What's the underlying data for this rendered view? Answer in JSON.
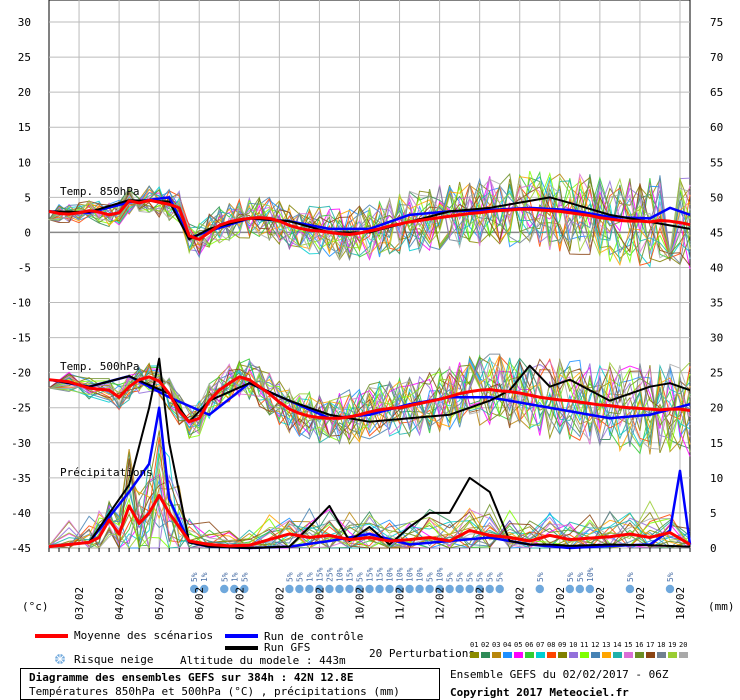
{
  "chart_data": {
    "type": "line",
    "title": "Diagramme des ensembles GEFS sur 384h : 42N 12.8E",
    "subtitle": "Températures 850hPa et 500hPa (°C) , précipitations (mm)",
    "source": "Ensemble GEFS du 02/02/2017 - 06Z",
    "copyright": "Copyright 2017 Meteociel.fr",
    "altitude_label": "Altitude du modele : 443m",
    "left_unit": "(°c)",
    "right_unit": "(mm)",
    "left_ticks": [
      "30",
      "25",
      "20",
      "15",
      "10",
      "5",
      "0",
      "-5",
      "-10",
      "-15",
      "-20",
      "-25",
      "-30",
      "-35",
      "-40",
      "-45"
    ],
    "right_ticks": [
      "75",
      "70",
      "65",
      "60",
      "55",
      "50",
      "45",
      "40",
      "35",
      "30",
      "25",
      "20",
      "15",
      "10",
      "5",
      "0"
    ],
    "ylim_left": [
      -45,
      30
    ],
    "ylim_right": [
      0,
      75
    ],
    "x_dates": [
      "03/02",
      "04/02",
      "05/02",
      "06/02",
      "07/02",
      "08/02",
      "09/02",
      "10/02",
      "11/02",
      "12/02",
      "13/02",
      "14/02",
      "15/02",
      "16/02",
      "17/02",
      "18/02"
    ],
    "sections": {
      "t850": "Temp. 850hPa",
      "t500": "Temp. 500hPa",
      "precip": "Précipitations"
    },
    "legend": {
      "mean": "Moyenne des scénarios",
      "control": "Run de contrôle",
      "gfs": "Run GFS",
      "snow": "Risque neige",
      "perturbations": "20 Perturbations",
      "perturbation_ids": [
        "01",
        "02",
        "03",
        "04",
        "05",
        "06",
        "07",
        "08",
        "09",
        "10",
        "11",
        "12",
        "13",
        "14",
        "15",
        "16",
        "17",
        "18",
        "19",
        "20"
      ],
      "perturbation_colors": [
        "#8c8c00",
        "#2e8b57",
        "#b8860b",
        "#1e90ff",
        "#ff00ff",
        "#32cd32",
        "#00ced1",
        "#ff4500",
        "#808000",
        "#9370db",
        "#7fff00",
        "#4682b4",
        "#ffa500",
        "#20b2aa",
        "#da70d6",
        "#6b8e23",
        "#8b4513",
        "#708090",
        "#9acd32",
        "#a9a9a9"
      ]
    },
    "colors": {
      "mean": "#ff0000",
      "control": "#0000ff",
      "gfs": "#000000",
      "snow": "#6fa8dc"
    },
    "series": [
      {
        "name": "Moyenne des scénarios",
        "group": "t850",
        "x": [
          0,
          6,
          12,
          18,
          24,
          30,
          36,
          42,
          48,
          54,
          60,
          66,
          72,
          78,
          84,
          90,
          96,
          102,
          108,
          114,
          120,
          126,
          132,
          138,
          144,
          150,
          156,
          162,
          168,
          174,
          180,
          186,
          192,
          198,
          204,
          210,
          216,
          222,
          228,
          234,
          240,
          246,
          252,
          258,
          264,
          270,
          276,
          282,
          288,
          294,
          300,
          306,
          312,
          318,
          324,
          330,
          336,
          342,
          348,
          354,
          360,
          366,
          372,
          378,
          384
        ],
        "y": [
          3,
          2.7,
          2.6,
          2.8,
          3.1,
          2.9,
          2.5,
          2.8,
          4.5,
          4.2,
          4.6,
          4.3,
          4,
          3.5,
          -0.5,
          -1,
          0,
          1,
          1.5,
          1.8,
          2,
          2.1,
          2,
          1.6,
          1,
          0.6,
          0.3,
          0.2,
          0,
          -0.2,
          -0.3,
          -0.1,
          0.2,
          0.5,
          0.9,
          1.2,
          1.5,
          1.7,
          1.9,
          2.1,
          2.3,
          2.5,
          2.7,
          2.8,
          3,
          3.1,
          3.2,
          3.3,
          3.3,
          3.2,
          3.1,
          3,
          2.8,
          2.6,
          2.4,
          2.1,
          1.9,
          1.7,
          1.6,
          1.6,
          1.5,
          1.7,
          1.6,
          1.4,
          1.1
        ]
      },
      {
        "name": "Run de contrôle",
        "group": "t850",
        "x": [
          0,
          24,
          48,
          72,
          84,
          96,
          120,
          144,
          168,
          192,
          216,
          240,
          264,
          288,
          312,
          336,
          360,
          372,
          384
        ],
        "y": [
          3,
          2.8,
          4.3,
          5,
          -0.8,
          0.2,
          2,
          1.6,
          0.5,
          0.5,
          2.5,
          3,
          3.2,
          3.5,
          3.2,
          2.2,
          2,
          3.5,
          2.5
        ]
      },
      {
        "name": "Run GFS",
        "group": "t850",
        "x": [
          0,
          24,
          48,
          72,
          84,
          96,
          120,
          144,
          168,
          192,
          216,
          240,
          264,
          288,
          300,
          312,
          336,
          360,
          384
        ],
        "y": [
          3,
          2.9,
          4.6,
          4.4,
          -1,
          0.5,
          2,
          1.6,
          0,
          0,
          1.5,
          3,
          3.5,
          4.5,
          5,
          4.2,
          2.5,
          1.5,
          0.5
        ]
      },
      {
        "name": "Moyenne des scénarios",
        "group": "t500",
        "x": [
          0,
          12,
          24,
          36,
          42,
          48,
          54,
          60,
          66,
          72,
          78,
          84,
          90,
          96,
          102,
          108,
          114,
          120,
          126,
          132,
          138,
          144,
          150,
          156,
          162,
          168,
          174,
          180,
          186,
          192,
          198,
          204,
          210,
          216,
          222,
          228,
          234,
          240,
          246,
          252,
          258,
          264,
          270,
          276,
          282,
          288,
          294,
          300,
          306,
          312,
          318,
          324,
          330,
          336,
          342,
          348,
          354,
          360,
          366,
          372,
          378,
          384
        ],
        "y": [
          -21,
          -21.3,
          -22.2,
          -22.5,
          -23.5,
          -22,
          -21,
          -20.6,
          -21.2,
          -23,
          -25.5,
          -27,
          -26.5,
          -24,
          -22.5,
          -21.5,
          -20.6,
          -21,
          -22,
          -23,
          -24.2,
          -25.2,
          -25.8,
          -26.2,
          -26.4,
          -26.5,
          -26.5,
          -26.3,
          -26,
          -25.6,
          -25.3,
          -25.1,
          -25,
          -24.7,
          -24.4,
          -24.1,
          -23.8,
          -23.4,
          -23,
          -22.7,
          -22.5,
          -22.4,
          -22.6,
          -22.7,
          -22.9,
          -23.2,
          -23.5,
          -23.7,
          -23.9,
          -24,
          -24.2,
          -24.4,
          -24.6,
          -24.7,
          -24.9,
          -25,
          -25.1,
          -25.2,
          -25.3,
          -25.2,
          -25.2,
          -25.4
        ]
      },
      {
        "name": "Run de contrôle",
        "group": "t500",
        "x": [
          0,
          24,
          48,
          72,
          96,
          120,
          144,
          168,
          192,
          216,
          240,
          264,
          288,
          312,
          336,
          360,
          384
        ],
        "y": [
          -21,
          -22,
          -20.5,
          -23.5,
          -26,
          -21.5,
          -24,
          -26.5,
          -26,
          -24.5,
          -23.5,
          -23.5,
          -24.5,
          -25.5,
          -26.5,
          -26,
          -24.5
        ]
      },
      {
        "name": "Run GFS",
        "group": "t500",
        "x": [
          0,
          24,
          48,
          72,
          84,
          96,
          120,
          144,
          168,
          192,
          216,
          240,
          264,
          276,
          288,
          300,
          312,
          336,
          360,
          372,
          384
        ],
        "y": [
          -21,
          -22,
          -20.5,
          -23,
          -27,
          -24,
          -21.5,
          -24,
          -26,
          -27,
          -26.5,
          -26,
          -24,
          -22.5,
          -19,
          -22,
          -21,
          -24,
          -22,
          -21.5,
          -22.5
        ]
      },
      {
        "name": "Moyenne des scénarios",
        "group": "precip",
        "x": [
          0,
          12,
          24,
          30,
          36,
          42,
          48,
          54,
          60,
          66,
          72,
          78,
          84,
          96,
          108,
          120,
          132,
          144,
          156,
          168,
          180,
          192,
          204,
          216,
          228,
          240,
          252,
          264,
          276,
          288,
          300,
          312,
          324,
          336,
          348,
          360,
          372,
          384
        ],
        "y": [
          0.2,
          0.5,
          0.8,
          1.5,
          4,
          2,
          6,
          3.5,
          5,
          7.5,
          5,
          3,
          1,
          0.5,
          0.3,
          0.4,
          1.2,
          2,
          1.5,
          1.8,
          1.2,
          1.5,
          1,
          1.2,
          1.5,
          1,
          2.5,
          1.8,
          1.5,
          1,
          1.8,
          1.2,
          1.4,
          1.6,
          2,
          1.5,
          2.2,
          0.5
        ]
      },
      {
        "name": "Run de contrôle",
        "group": "precip",
        "x": [
          0,
          24,
          48,
          60,
          66,
          72,
          84,
          96,
          120,
          144,
          168,
          192,
          216,
          240,
          264,
          288,
          312,
          336,
          360,
          372,
          378,
          384
        ],
        "y": [
          0.2,
          0.8,
          8,
          12,
          20,
          7,
          0.8,
          0.2,
          0,
          0.2,
          1,
          2,
          0.5,
          1,
          1.5,
          0.5,
          0,
          0.3,
          0.5,
          2.5,
          11,
          0.5
        ]
      },
      {
        "name": "Run GFS",
        "group": "precip",
        "x": [
          0,
          24,
          48,
          60,
          66,
          72,
          84,
          96,
          120,
          144,
          156,
          168,
          180,
          192,
          204,
          216,
          228,
          240,
          252,
          264,
          276,
          288,
          300,
          312,
          336,
          360,
          384
        ],
        "y": [
          0.2,
          0.8,
          9,
          20,
          27,
          15,
          0.8,
          0.2,
          0,
          0.2,
          3,
          6,
          1,
          3,
          0.5,
          3,
          5,
          5,
          10,
          8,
          1,
          0.5,
          0.5,
          0.3,
          0.5,
          0.4,
          0.2
        ]
      }
    ],
    "snow_risk": [
      {
        "x": 87,
        "label": "5%"
      },
      {
        "x": 93,
        "label": "1%"
      },
      {
        "x": 105,
        "label": "5%"
      },
      {
        "x": 111,
        "label": "1%"
      },
      {
        "x": 117,
        "label": "5%"
      },
      {
        "x": 144,
        "label": "5%"
      },
      {
        "x": 150,
        "label": "5%"
      },
      {
        "x": 156,
        "label": "1%"
      },
      {
        "x": 162,
        "label": "15%"
      },
      {
        "x": 168,
        "label": "25%"
      },
      {
        "x": 174,
        "label": "10%"
      },
      {
        "x": 180,
        "label": "15%"
      },
      {
        "x": 186,
        "label": "5%"
      },
      {
        "x": 192,
        "label": "15%"
      },
      {
        "x": 198,
        "label": "15%"
      },
      {
        "x": 204,
        "label": "10%"
      },
      {
        "x": 210,
        "label": "10%"
      },
      {
        "x": 216,
        "label": "10%"
      },
      {
        "x": 222,
        "label": "10%"
      },
      {
        "x": 228,
        "label": "5%"
      },
      {
        "x": 234,
        "label": "10%"
      },
      {
        "x": 240,
        "label": "5%"
      },
      {
        "x": 246,
        "label": "5%"
      },
      {
        "x": 252,
        "label": "5%"
      },
      {
        "x": 258,
        "label": "5%"
      },
      {
        "x": 264,
        "label": "5%"
      },
      {
        "x": 270,
        "label": "5%"
      },
      {
        "x": 294,
        "label": "5%"
      },
      {
        "x": 312,
        "label": "5%"
      },
      {
        "x": 318,
        "label": "5%"
      },
      {
        "x": 324,
        "label": "10%"
      },
      {
        "x": 348,
        "label": "5%"
      },
      {
        "x": 372,
        "label": "5%"
      }
    ]
  }
}
